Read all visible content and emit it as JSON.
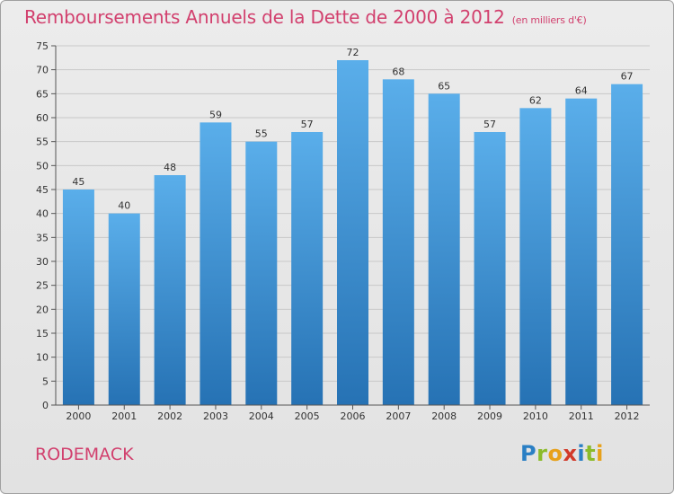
{
  "title": "Remboursements Annuels de la Dette de 2000 à 2012",
  "unit": "(en milliers d'€)",
  "commune": "RODEMACK",
  "logo": {
    "text": "Proxiti",
    "letters": [
      {
        "ch": "P",
        "color": "#2a7fc4"
      },
      {
        "ch": "r",
        "color": "#8bbb2a"
      },
      {
        "ch": "o",
        "color": "#e7a11b"
      },
      {
        "ch": "x",
        "color": "#d23a2a"
      },
      {
        "ch": "i",
        "color": "#2a7fc4"
      },
      {
        "ch": "t",
        "color": "#8bbb2a"
      },
      {
        "ch": "i",
        "color": "#e7a11b"
      }
    ]
  },
  "colors": {
    "title": "#d2406e",
    "bar_top": "#5aaeea",
    "bar_bottom": "#2672b4",
    "grid": "#c8c8c8"
  },
  "chart_data": {
    "type": "bar",
    "categories": [
      "2000",
      "2001",
      "2002",
      "2003",
      "2004",
      "2005",
      "2006",
      "2007",
      "2008",
      "2009",
      "2010",
      "2011",
      "2012"
    ],
    "values": [
      45,
      40,
      48,
      59,
      55,
      57,
      72,
      68,
      65,
      57,
      62,
      64,
      67
    ],
    "ylim": [
      0,
      75
    ],
    "yticks": [
      0,
      5,
      10,
      15,
      20,
      25,
      30,
      35,
      40,
      45,
      50,
      55,
      60,
      65,
      70,
      75
    ],
    "grid": true,
    "legend": "none"
  }
}
